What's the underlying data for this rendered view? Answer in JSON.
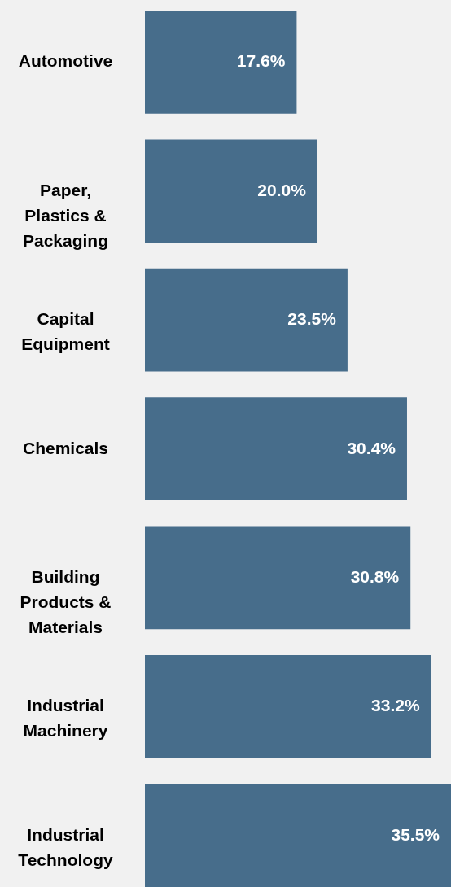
{
  "chart_data": {
    "type": "bar",
    "orientation": "horizontal",
    "categories": [
      "Automotive",
      "Paper,\nPlastics &\nPackaging",
      "Capital\nEquipment",
      "Chemicals",
      "Building\nProducts &\nMaterials",
      "Industrial\nMachinery",
      "Industrial\nTechnology"
    ],
    "values": [
      17.6,
      20.0,
      23.5,
      30.4,
      30.8,
      33.2,
      35.5
    ],
    "value_labels": [
      "17.6%",
      "20.0%",
      "23.5%",
      "30.4%",
      "30.8%",
      "33.2%",
      "35.5%"
    ],
    "color": "#476d8b"
  }
}
